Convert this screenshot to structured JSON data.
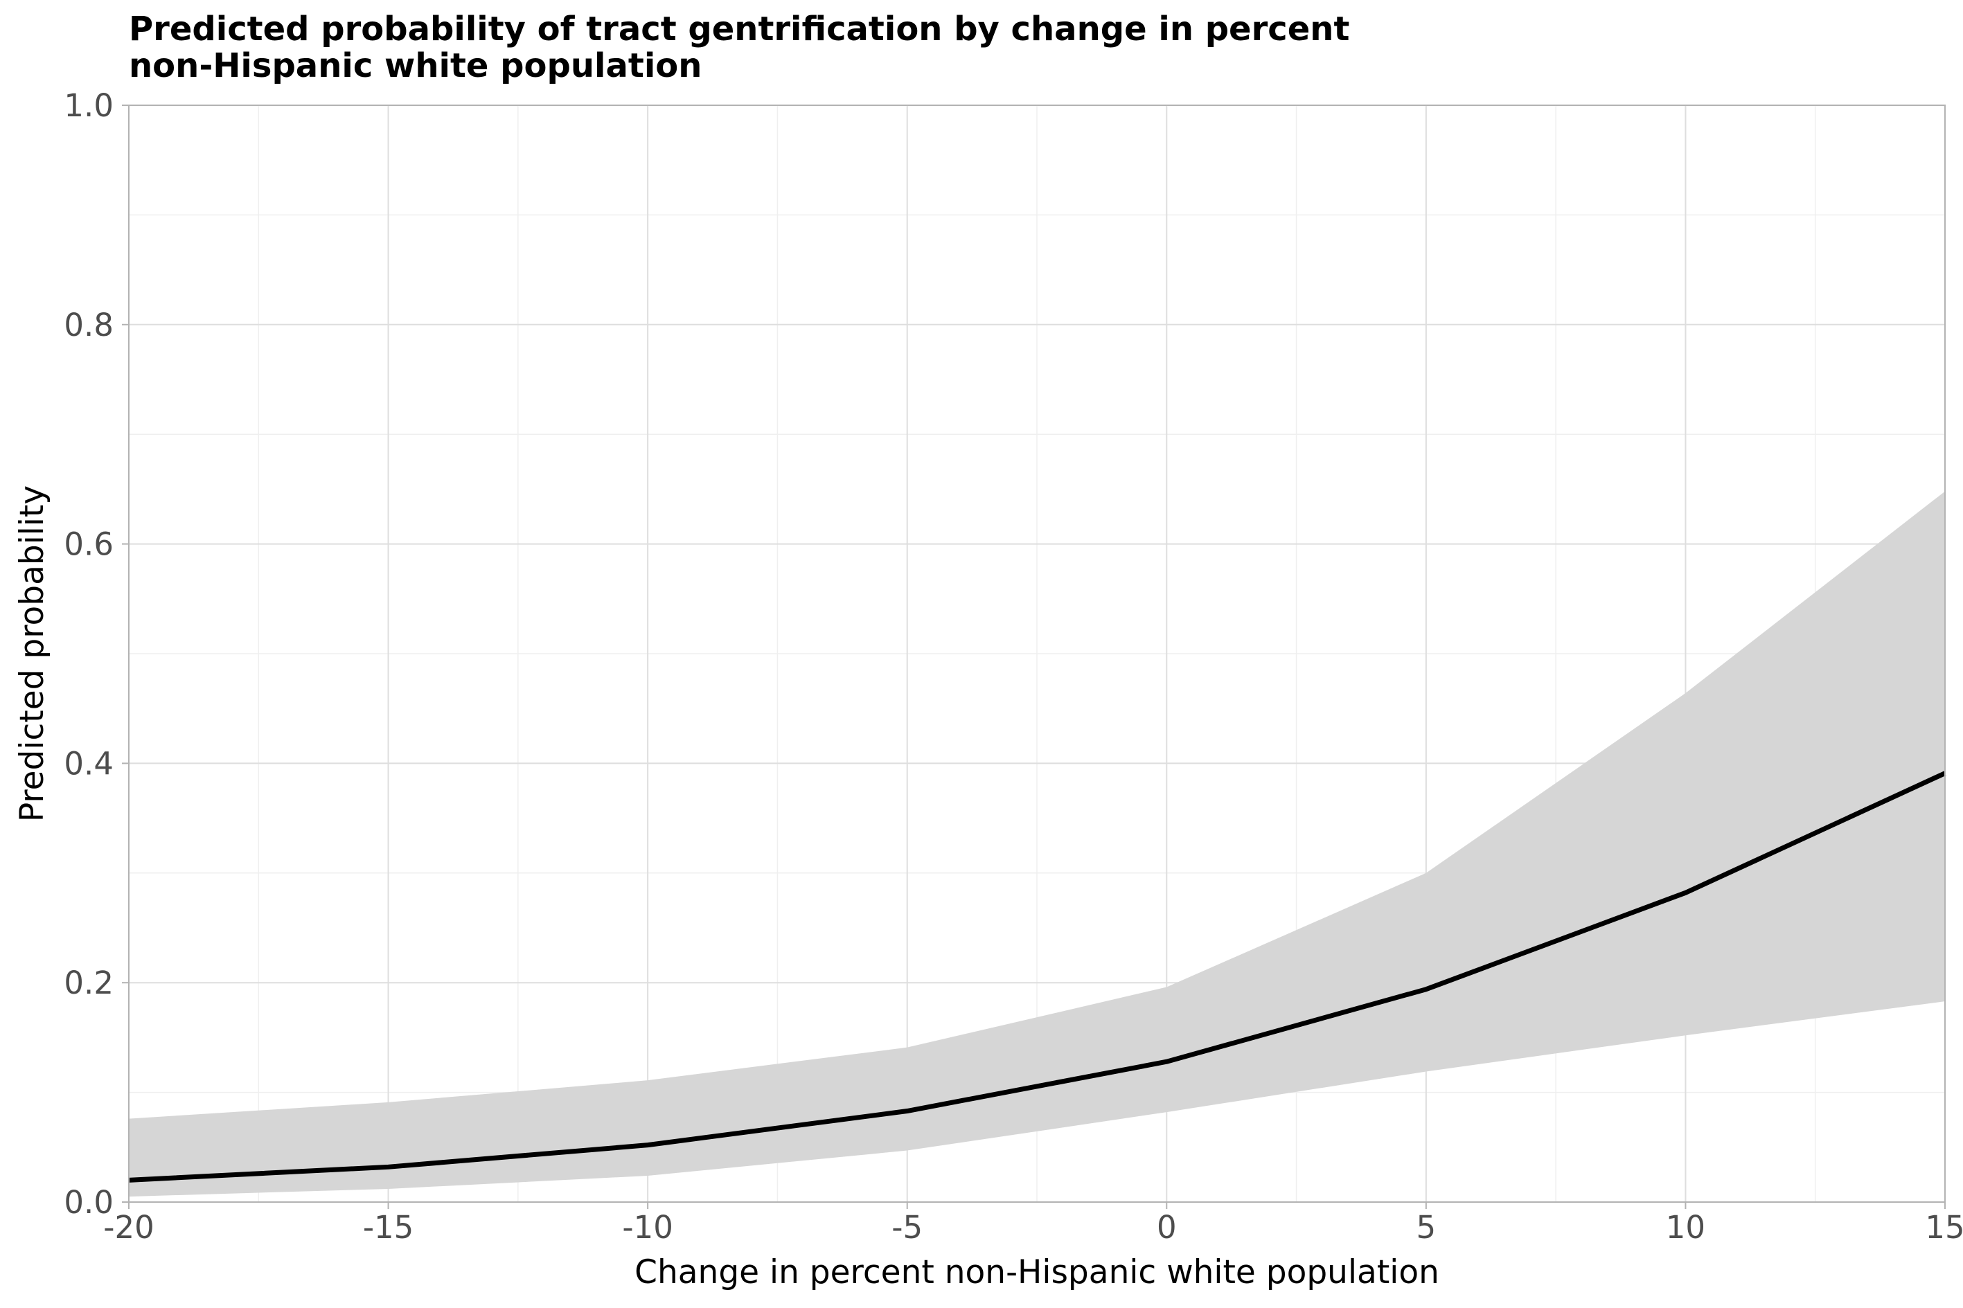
{
  "chart_data": {
    "type": "line",
    "title": "Predicted probability of tract gentrification by change in percent non-Hispanic white population",
    "title_lines": [
      "Predicted probability of tract gentrification by change in percent",
      "non-Hispanic white population"
    ],
    "xlabel": "Change in percent non-Hispanic white population",
    "ylabel": "Predicted probability",
    "xlim": [
      -20,
      15
    ],
    "ylim": [
      0,
      1
    ],
    "x_ticks": [
      -20,
      -15,
      -10,
      -5,
      0,
      5,
      10,
      15
    ],
    "x_tick_labels": [
      "-20",
      "-15",
      "-10",
      "-5",
      "0",
      "5",
      "10",
      "15"
    ],
    "y_ticks": [
      0,
      0.2,
      0.4,
      0.6,
      0.8,
      1.0
    ],
    "y_tick_labels": [
      "0.0",
      "0.2",
      "0.4",
      "0.6",
      "0.8",
      "1.0"
    ],
    "grid": true,
    "series": [
      {
        "x": [
          -20,
          -15,
          -10,
          -5,
          0,
          5,
          10,
          15
        ],
        "values": [
          0.02,
          0.032,
          0.052,
          0.083,
          0.128,
          0.194,
          0.282,
          0.391
        ],
        "lower": [
          0.005,
          0.012,
          0.024,
          0.047,
          0.082,
          0.119,
          0.152,
          0.183
        ],
        "upper": [
          0.076,
          0.091,
          0.111,
          0.141,
          0.196,
          0.3,
          0.464,
          0.648
        ]
      }
    ],
    "colors": {
      "line": "#000000",
      "ribbon": "#d6d6d6",
      "grid_major": "#dedede",
      "grid_minor": "#efefef",
      "panel_border": "#b3b3b3",
      "tick_label": "#4d4d4d"
    }
  }
}
